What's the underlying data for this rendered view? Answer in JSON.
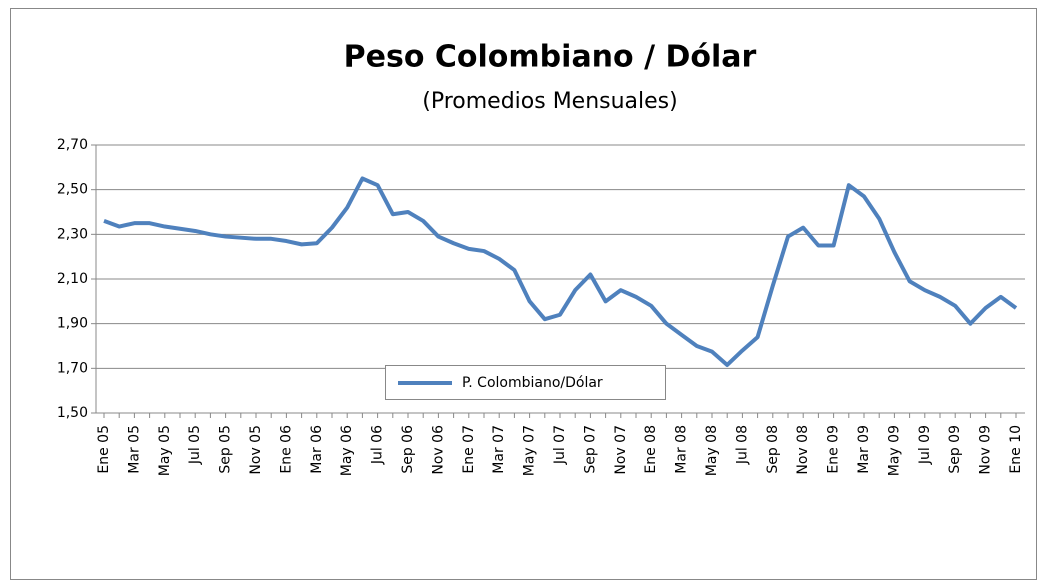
{
  "chart_data": {
    "type": "line",
    "title": "Peso Colombiano / Dólar",
    "subtitle": "(Promedios Mensuales)",
    "categories": [
      "Ene 05",
      null,
      "Mar 05",
      null,
      "May 05",
      null,
      "Jul 05",
      null,
      "Sep 05",
      null,
      "Nov 05",
      null,
      "Ene 06",
      null,
      "Mar 06",
      null,
      "May 06",
      null,
      "Jul 06",
      null,
      "Sep 06",
      null,
      "Nov 06",
      null,
      "Ene 07",
      null,
      "Mar 07",
      null,
      "May 07",
      null,
      "Jul 07",
      null,
      "Sep 07",
      null,
      "Nov 07",
      null,
      "Ene 08",
      null,
      "Mar 08",
      null,
      "May 08",
      null,
      "Jul 08",
      null,
      "Sep 08",
      null,
      "Nov 08",
      null,
      "Ene 09",
      null,
      "Mar 09",
      null,
      "May 09",
      null,
      "Jul 09",
      null,
      "Sep 09",
      null,
      "Nov 09",
      null,
      "Ene 10"
    ],
    "series": [
      {
        "name": "P. Colombiano/Dólar",
        "color": "#4f81bd",
        "values": [
          2.36,
          2.335,
          2.35,
          2.35,
          2.335,
          2.325,
          2.315,
          2.3,
          2.29,
          2.285,
          2.28,
          2.28,
          2.27,
          2.255,
          2.26,
          2.33,
          2.42,
          2.55,
          2.52,
          2.39,
          2.4,
          2.36,
          2.29,
          2.26,
          2.235,
          2.225,
          2.19,
          2.14,
          2.0,
          1.92,
          1.94,
          2.05,
          2.12,
          2.0,
          2.05,
          2.02,
          1.98,
          1.9,
          1.85,
          1.8,
          1.775,
          1.715,
          1.78,
          1.84,
          2.07,
          2.29,
          2.33,
          2.25,
          2.25,
          2.52,
          2.47,
          2.37,
          2.22,
          2.09,
          2.05,
          2.02,
          1.98,
          1.9,
          1.97,
          2.02,
          1.97
        ]
      }
    ],
    "ylim": [
      1.5,
      2.7
    ],
    "yticks": [
      {
        "value": 1.5,
        "label": "1,50"
      },
      {
        "value": 1.7,
        "label": "1,70"
      },
      {
        "value": 1.9,
        "label": "1,90"
      },
      {
        "value": 2.1,
        "label": "2,10"
      },
      {
        "value": 2.3,
        "label": "2,30"
      },
      {
        "value": 2.5,
        "label": "2,50"
      },
      {
        "value": 2.7,
        "label": "2,70"
      }
    ],
    "grid": true,
    "legend": "bottom"
  }
}
